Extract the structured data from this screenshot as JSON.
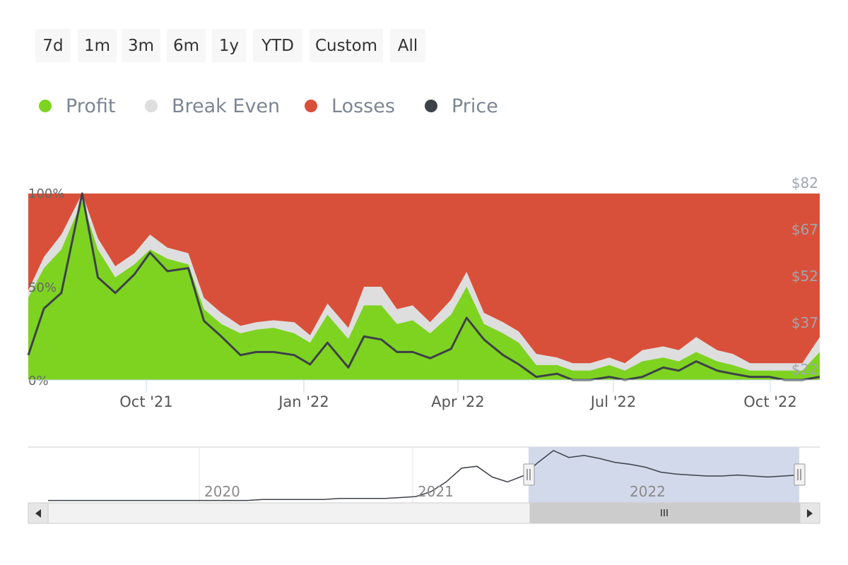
{
  "range_selector": {
    "buttons": [
      "7d",
      "1m",
      "3m",
      "6m",
      "1y",
      "YTD",
      "Custom",
      "All"
    ]
  },
  "legend": [
    {
      "label": "Profit",
      "color": "#7ed321"
    },
    {
      "label": "Break Even",
      "color": "#dedede"
    },
    {
      "label": "Losses",
      "color": "#d9503a"
    },
    {
      "label": "Price",
      "color": "#3d4149"
    }
  ],
  "colors": {
    "profit": "#7ed321",
    "break_even": "#dedede",
    "losses": "#d9503a",
    "price": "#3d4149",
    "navigator_mask": "#d2d9ea"
  },
  "chart_data": {
    "type": "area",
    "stacking": "percent",
    "left_axis": {
      "ticks": [
        "0%",
        "50%",
        "100%"
      ],
      "range": [
        0,
        100
      ]
    },
    "right_axis": {
      "ticks": [
        "$22",
        "$37",
        "$52",
        "$67",
        "$82"
      ],
      "range": [
        22,
        82
      ]
    },
    "x_axis": {
      "ticks": [
        "Oct '21",
        "Jan '22",
        "Apr '22",
        "Jul '22",
        "Oct '22"
      ]
    },
    "x": [
      "2021-08-01",
      "2021-08-10",
      "2021-08-20",
      "2021-09-01",
      "2021-09-10",
      "2021-09-20",
      "2021-10-01",
      "2021-10-10",
      "2021-10-20",
      "2021-11-01",
      "2021-11-10",
      "2021-11-20",
      "2021-12-01",
      "2021-12-10",
      "2021-12-20",
      "2022-01-01",
      "2022-01-10",
      "2022-01-20",
      "2022-02-01",
      "2022-02-10",
      "2022-02-20",
      "2022-03-01",
      "2022-03-10",
      "2022-03-20",
      "2022-04-01",
      "2022-04-10",
      "2022-04-20",
      "2022-05-01",
      "2022-05-10",
      "2022-05-20",
      "2022-06-01",
      "2022-06-10",
      "2022-06-20",
      "2022-07-01",
      "2022-07-10",
      "2022-07-20",
      "2022-08-01",
      "2022-08-10",
      "2022-08-20",
      "2022-09-01",
      "2022-09-10",
      "2022-09-20",
      "2022-10-01",
      "2022-10-10",
      "2022-10-20",
      "2022-10-30"
    ],
    "series": [
      {
        "name": "Profit",
        "unit": "%",
        "values": [
          44,
          60,
          70,
          96,
          70,
          55,
          62,
          70,
          65,
          62,
          38,
          30,
          25,
          27,
          28,
          25,
          20,
          35,
          22,
          40,
          40,
          30,
          32,
          25,
          35,
          50,
          30,
          25,
          20,
          8,
          8,
          5,
          5,
          8,
          5,
          10,
          12,
          10,
          15,
          10,
          8,
          5,
          5,
          5,
          5,
          15
        ]
      },
      {
        "name": "Break Even",
        "unit": "%",
        "values": [
          4,
          6,
          8,
          4,
          6,
          6,
          6,
          8,
          6,
          6,
          6,
          6,
          4,
          4,
          4,
          6,
          4,
          6,
          6,
          10,
          10,
          8,
          8,
          6,
          8,
          8,
          6,
          6,
          6,
          6,
          4,
          4,
          4,
          4,
          4,
          6,
          6,
          6,
          8,
          6,
          6,
          4,
          4,
          4,
          4,
          8
        ]
      },
      {
        "name": "Losses",
        "unit": "%",
        "values": [
          52,
          34,
          22,
          0,
          24,
          39,
          32,
          22,
          29,
          32,
          56,
          64,
          71,
          69,
          68,
          69,
          76,
          59,
          72,
          50,
          50,
          62,
          60,
          69,
          57,
          42,
          64,
          69,
          74,
          86,
          88,
          91,
          91,
          88,
          91,
          84,
          82,
          84,
          77,
          84,
          86,
          91,
          91,
          91,
          91,
          77
        ]
      },
      {
        "name": "Price",
        "unit": "$",
        "values": [
          30,
          45,
          50,
          82,
          55,
          50,
          56,
          63,
          57,
          58,
          41,
          36,
          30,
          31,
          31,
          30,
          27,
          34,
          26,
          36,
          35,
          31,
          31,
          29,
          32,
          42,
          35,
          30,
          27,
          23,
          24,
          22,
          22,
          23,
          22,
          23,
          26,
          25,
          28,
          25,
          24,
          23,
          23,
          22,
          22,
          23
        ]
      }
    ]
  },
  "navigator": {
    "year_labels": [
      "2020",
      "2021",
      "2022"
    ],
    "series": [
      1,
      1,
      1,
      1,
      1,
      1,
      1,
      1,
      1,
      1,
      1,
      1,
      1,
      1,
      2,
      2,
      2,
      2,
      2,
      3,
      3,
      3,
      3,
      4,
      5,
      10,
      20,
      34,
      36,
      25,
      20,
      26,
      40,
      52,
      45,
      47,
      44,
      40,
      38,
      35,
      30,
      28,
      27,
      26,
      26,
      27,
      26,
      25,
      26,
      27
    ]
  }
}
